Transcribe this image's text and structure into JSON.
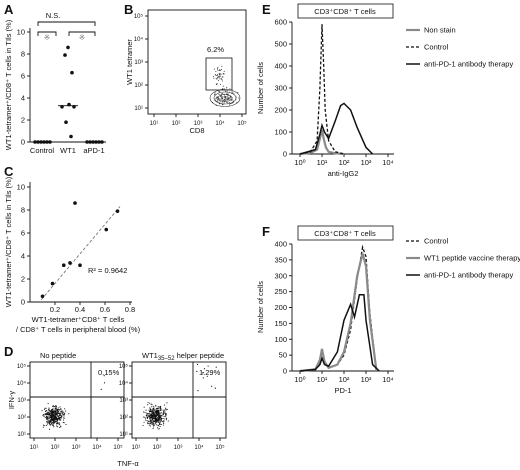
{
  "panels": {
    "A": {
      "label": "A",
      "ylabel": "WT1-tetramer⁺/CD8⁺ T cells in TIls (%)",
      "yticks": [
        "0",
        "2",
        "4",
        "6",
        "8",
        "10"
      ],
      "categories": [
        "Control",
        "WT1",
        "aPD-1"
      ],
      "ns": "N.S.",
      "sig": "※",
      "points": [
        [
          0,
          0,
          0,
          0,
          0,
          0
        ],
        [
          8.6,
          7.9,
          6.3,
          3.2,
          3.4,
          3.2,
          1.8,
          0.5
        ],
        [
          0,
          0,
          0,
          0,
          0,
          0
        ]
      ],
      "medians": [
        0,
        3.3,
        0
      ]
    },
    "B": {
      "label": "B",
      "ylabel": "WT1 tetramer",
      "xlabel": "CD8",
      "gate": "6.2%",
      "ticks": [
        "10¹",
        "10²",
        "10³",
        "10⁴",
        "10⁵"
      ]
    },
    "C": {
      "label": "C",
      "ylabel": "WT1-tetramer⁺/CD8⁺ T cells in TIls (%)",
      "xlabel1": "WT1-tetramer⁺CD8⁺ T cells",
      "xlabel2": "/ CD8⁺ T cells in peripheral blood (%)",
      "r2": "R² = 0.9642",
      "xticks": [
        "0.2",
        "0.4",
        "0.6",
        "0.8"
      ],
      "yticks": [
        "0",
        "2",
        "4",
        "6",
        "8",
        "10"
      ]
    },
    "D": {
      "label": "D",
      "ylabel": "IFN-γ",
      "xlabel": "TNF-α",
      "plot1_title": "No peptide",
      "plot1_pct": "0.15%",
      "plot2_title": "WT1",
      "plot2_sub": "35–52",
      "plot2_suffix": " helper peptide",
      "plot2_pct": "1.29%",
      "ticks": [
        "10¹",
        "10²",
        "10³",
        "10⁴",
        "10⁵"
      ]
    },
    "E": {
      "label": "E",
      "header": "CD3⁺CD8⁺ T cells",
      "ylabel": "Number of cells",
      "xlabel": "anti-IgG2",
      "yticks": [
        "0",
        "100",
        "200",
        "300",
        "400",
        "500",
        "600"
      ],
      "xticks": [
        "10⁰",
        "10¹",
        "10²",
        "10³",
        "10⁴"
      ],
      "legend": [
        "Non stain",
        "Control",
        "anti-PD-1 antibody therapy"
      ]
    },
    "F": {
      "label": "F",
      "header": "CD3⁺CD8⁺ T cells",
      "ylabel": "Number of cells",
      "xlabel": "PD-1",
      "yticks": [
        "0",
        "50",
        "100",
        "150",
        "200",
        "250",
        "300",
        "350",
        "400"
      ],
      "xticks": [
        "10⁰",
        "10¹",
        "10²",
        "10³",
        "10⁴"
      ],
      "legend": [
        "Control",
        "WT1 peptide vaccine therapy",
        "anti-PD-1 antibody therapy"
      ]
    }
  },
  "chart_data": [
    {
      "type": "scatter",
      "panel": "A",
      "categories": [
        "Control",
        "WT1",
        "aPD-1"
      ],
      "series": [
        {
          "name": "Control",
          "values": [
            0,
            0,
            0,
            0,
            0,
            0
          ]
        },
        {
          "name": "WT1",
          "values": [
            8.6,
            7.9,
            6.3,
            3.2,
            3.4,
            3.2,
            1.8,
            0.5
          ]
        },
        {
          "name": "aPD-1",
          "values": [
            0,
            0,
            0,
            0,
            0,
            0
          ]
        }
      ],
      "ylim": [
        0,
        10
      ]
    },
    {
      "type": "scatter",
      "panel": "C",
      "x": [
        0.1,
        0.18,
        0.27,
        0.32,
        0.36,
        0.4,
        0.61,
        0.7
      ],
      "y": [
        0.5,
        1.6,
        3.2,
        3.4,
        8.6,
        3.2,
        6.3,
        7.9
      ],
      "xlim": [
        0,
        0.8
      ],
      "ylim": [
        0,
        10
      ],
      "fit_r2": 0.9642
    },
    {
      "type": "line",
      "panel": "E",
      "xscale": "log",
      "xlim": [
        1,
        10000
      ],
      "ylim": [
        0,
        600
      ],
      "series": [
        {
          "name": "Non stain",
          "x": [
            1,
            3,
            6,
            8,
            10,
            12,
            15,
            20,
            40,
            100
          ],
          "y": [
            0,
            5,
            20,
            70,
            110,
            70,
            30,
            10,
            3,
            0
          ]
        },
        {
          "name": "Control",
          "x": [
            1,
            3,
            6,
            8,
            10,
            12,
            14,
            20,
            40,
            100
          ],
          "y": [
            0,
            10,
            60,
            300,
            590,
            400,
            200,
            60,
            10,
            0
          ]
        },
        {
          "name": "anti-PD-1 antibody therapy",
          "x": [
            1,
            5,
            8,
            10,
            13,
            20,
            40,
            70,
            100,
            200,
            400,
            1000,
            2000
          ],
          "y": [
            0,
            20,
            90,
            130,
            100,
            70,
            150,
            220,
            230,
            200,
            120,
            30,
            0
          ]
        }
      ]
    },
    {
      "type": "line",
      "panel": "F",
      "xscale": "log",
      "xlim": [
        1,
        10000
      ],
      "ylim": [
        0,
        400
      ],
      "series": [
        {
          "name": "Control",
          "x": [
            1,
            5,
            8,
            10,
            13,
            20,
            50,
            100,
            200,
            400,
            700,
            1000,
            1500,
            3000
          ],
          "y": [
            0,
            5,
            30,
            60,
            25,
            10,
            20,
            50,
            130,
            290,
            390,
            360,
            180,
            0
          ]
        },
        {
          "name": "WT1 peptide vaccine therapy",
          "x": [
            1,
            5,
            8,
            10,
            13,
            20,
            50,
            100,
            200,
            400,
            700,
            1000,
            1500,
            3000
          ],
          "y": [
            0,
            5,
            35,
            70,
            30,
            10,
            20,
            60,
            150,
            300,
            370,
            330,
            160,
            0
          ]
        },
        {
          "name": "anti-PD-1 antibody therapy",
          "x": [
            1,
            5,
            8,
            10,
            13,
            20,
            50,
            100,
            200,
            300,
            500,
            800,
            1000,
            2000,
            4000
          ],
          "y": [
            0,
            5,
            20,
            40,
            20,
            15,
            60,
            160,
            210,
            170,
            240,
            240,
            160,
            20,
            0
          ]
        }
      ]
    }
  ]
}
